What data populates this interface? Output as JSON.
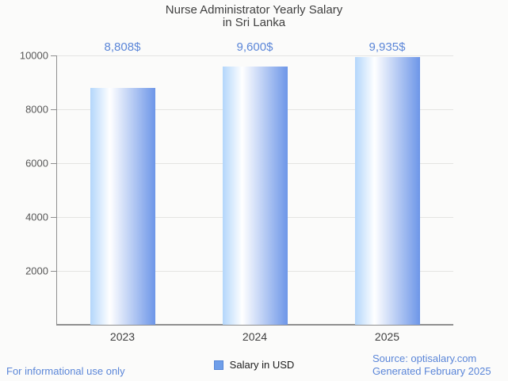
{
  "page": {
    "background": "#fbfbfa"
  },
  "chart_data": {
    "type": "bar",
    "title": "Nurse Administrator Yearly Salary in Sri Lanka",
    "title_lines": [
      "Nurse Administrator Yearly Salary",
      "in Sri Lanka"
    ],
    "categories": [
      "2023",
      "2024",
      "2025"
    ],
    "series": [
      {
        "name": "Salary in USD",
        "values": [
          8808,
          9600,
          9935
        ]
      }
    ],
    "value_labels": [
      "8,808$",
      "9,600$",
      "9,935$"
    ],
    "xlabel": "",
    "ylabel": "",
    "ylim": [
      0,
      10000
    ],
    "yticks": [
      2000,
      4000,
      6000,
      8000,
      10000
    ],
    "grid": true,
    "legend_position": "bottom",
    "colors": {
      "background": "#fbfbfa",
      "title": "#3f3f3f",
      "bar_gradient_left": "#b3d6fb",
      "bar_gradient_mid": "#ffffff",
      "bar_gradient_right": "#6d96e8",
      "value_label": "#5b86d8",
      "axis_line": "#8f8f8f",
      "gridline": "#e4e4e2",
      "tick_label": "#575757",
      "category_label": "#3f3f3f"
    }
  },
  "legend": {
    "label": "Salary in USD",
    "swatch_fill": "#6f9ee9",
    "swatch_border": "#5585d6",
    "text_color": "#1c1c1c"
  },
  "footer": {
    "left": "For informational use only",
    "source_line1": "Source: optisalary.com",
    "source_line2": "Generated February 2025",
    "link_color": "#5b86d8"
  }
}
